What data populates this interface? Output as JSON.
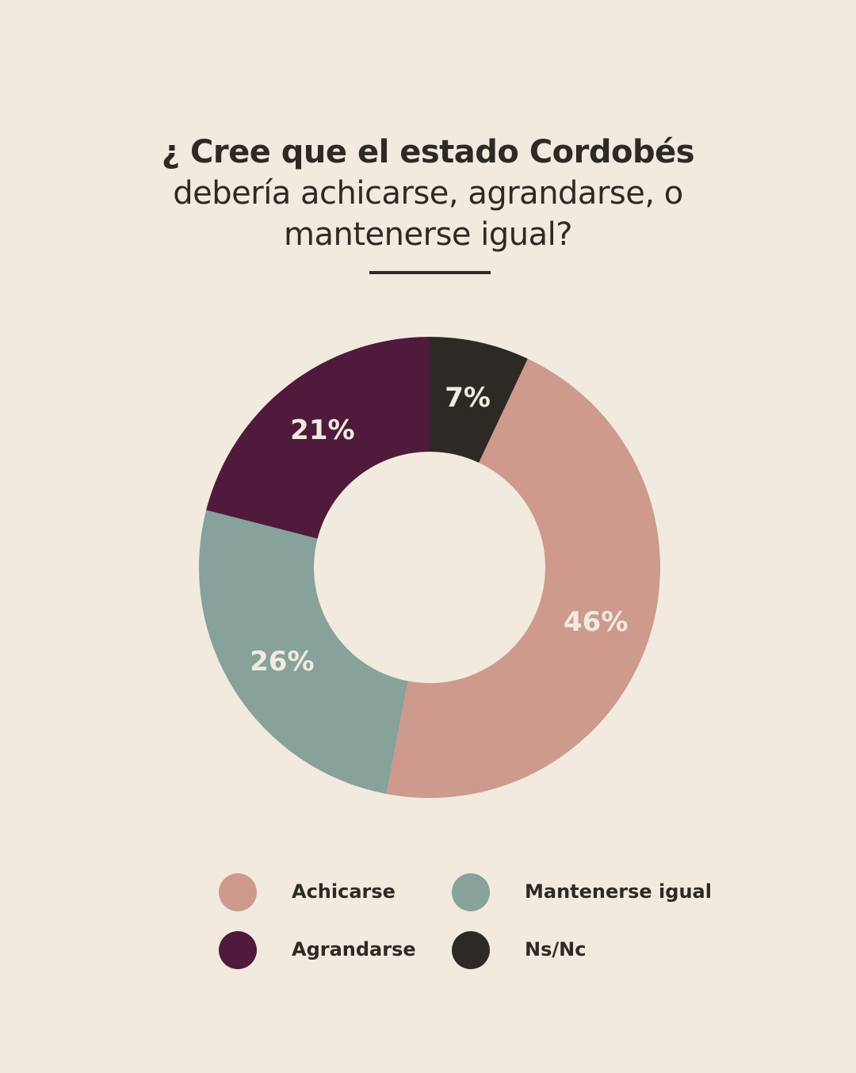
{
  "title": {
    "line1": "¿ Cree que el estado Cordobés",
    "line2": "debería achicarse, agrandarse, o",
    "line3": "mantenerse igual?"
  },
  "colors": {
    "background": "#f2eade",
    "text": "#2d2a26",
    "achicarse": "#cd9a8d",
    "mantenerse": "#87a19b",
    "agrandarse": "#4f1a3c",
    "nsnc": "#2d2a26"
  },
  "chart_data": {
    "type": "pie",
    "subtype": "donut",
    "title": "¿ Cree que el estado Cordobés debería achicarse, agrandarse, o mantenerse igual?",
    "categories": [
      "Ns/Nc",
      "Achicarse",
      "Mantenerse igual",
      "Agrandarse"
    ],
    "values": [
      7,
      46,
      26,
      21
    ],
    "labels": [
      "7%",
      "46%",
      "26%",
      "21%"
    ],
    "colors": [
      "#2d2a26",
      "#cd9a8d",
      "#87a19b",
      "#4f1a3c"
    ],
    "start_angle": "12 o'clock, clockwise",
    "legend_position": "bottom",
    "legend": [
      "Achicarse",
      "Mantenerse igual",
      "Agrandarse",
      "Ns/Nc"
    ]
  },
  "legend": {
    "items": [
      {
        "label": "Achicarse",
        "color": "#cd9a8d"
      },
      {
        "label": "Mantenerse igual",
        "color": "#87a19b"
      },
      {
        "label": "Agrandarse",
        "color": "#4f1a3c"
      },
      {
        "label": "Ns/Nc",
        "color": "#2d2a26"
      }
    ]
  }
}
